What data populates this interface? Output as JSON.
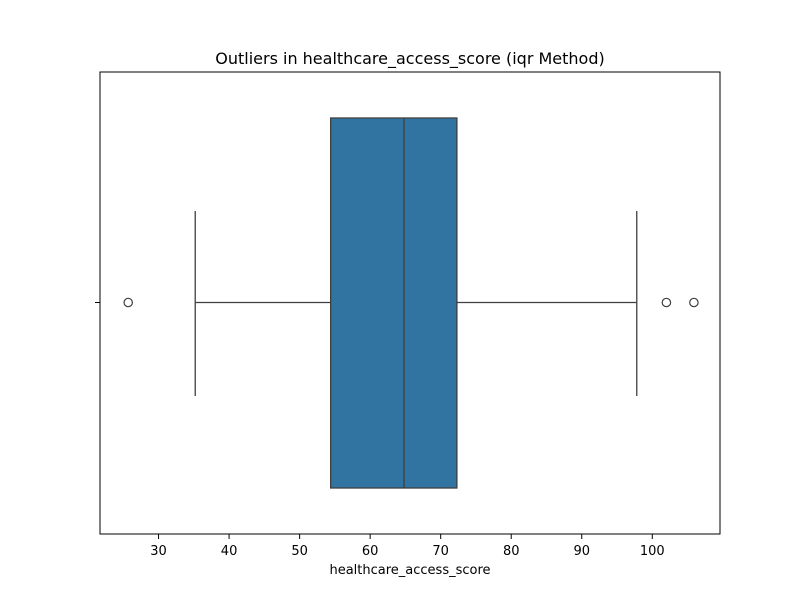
{
  "chart_data": {
    "type": "box",
    "title": "Outliers in healthcare_access_score (iqr Method)",
    "xlabel": "healthcare_access_score",
    "ylabel": "",
    "orientation": "horizontal",
    "xlim": [
      21.7,
      109.6
    ],
    "xticks": [
      30,
      40,
      50,
      60,
      70,
      80,
      90,
      100
    ],
    "xtick_labels": [
      "30",
      "40",
      "50",
      "60",
      "70",
      "80",
      "90",
      "100"
    ],
    "grid": false,
    "box": {
      "whisker_low": 35.2,
      "q1": 54.4,
      "median": 64.8,
      "q3": 72.3,
      "whisker_high": 97.8,
      "color": "#3274a1",
      "edge_color": "#3f3f3f"
    },
    "outliers": [
      25.7,
      102.0,
      105.9
    ]
  }
}
